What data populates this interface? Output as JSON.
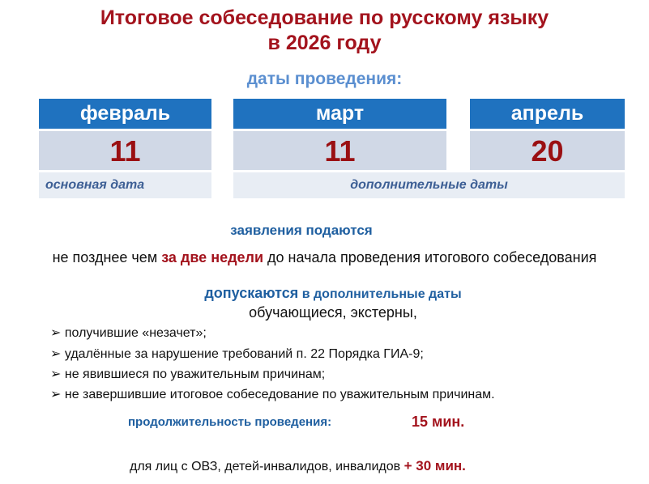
{
  "title": {
    "line1": "Итоговое собеседование по русскому языку",
    "line2": "в 2026 году"
  },
  "subtitle": "даты проведения:",
  "months": [
    {
      "name": "февраль",
      "day": "11"
    },
    {
      "name": "март",
      "day": "11"
    },
    {
      "name": "апрель",
      "day": "20"
    }
  ],
  "notes": {
    "main": "основная дата",
    "additional": "дополнительные даты"
  },
  "applications": {
    "heading": "заявления подаются",
    "prefix": "не позднее чем ",
    "highlight": "за  две недели",
    "suffix": " до начала проведения итогового собеседования"
  },
  "admitted": {
    "heading_bold": "допускаются",
    "heading_rest": " в дополнительные даты",
    "intro": "обучающиеся, экстерны,",
    "items": [
      "получившие «незачет»;",
      "удалённые за нарушение требований п. 22 Порядка ГИА-9;",
      "не явившиеся по уважительным причинам;",
      "не завершившие итоговое собеседование по уважительным причинам."
    ]
  },
  "duration": {
    "label": "продолжительность проведения:",
    "value": "15 мин.",
    "extra_text": "для лиц с ОВЗ, детей-инвалидов, инвалидов ",
    "extra_value": "+ 30 мин."
  },
  "colors": {
    "accent_red": "#a3131d",
    "header_blue": "#1f72bf",
    "text_blue": "#1f5fa0"
  }
}
